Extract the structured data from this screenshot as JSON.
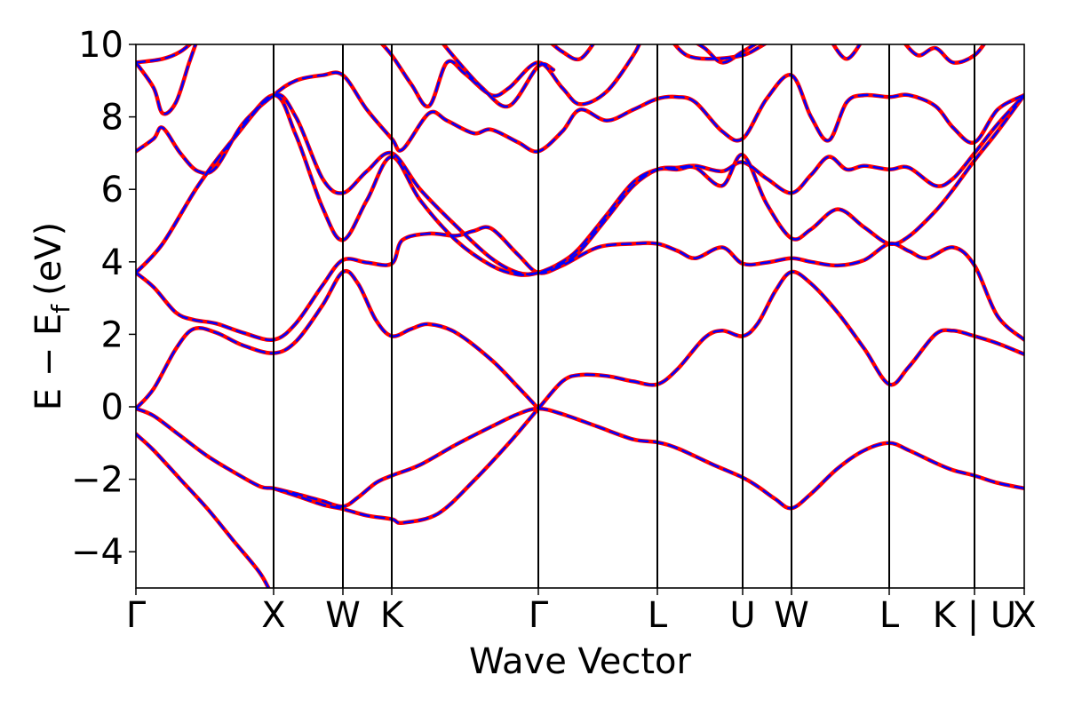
{
  "chart_data": {
    "type": "line",
    "title": "",
    "xlabel": "Wave Vector",
    "ylabel": "E − E",
    "ylabel_sub": "f",
    "ylabel_unit": "(eV)",
    "ylim": [
      -5,
      10
    ],
    "yticks": [
      -4,
      -2,
      0,
      2,
      4,
      6,
      8,
      10
    ],
    "ytick_labels": [
      "−4",
      "−2",
      "0",
      "2",
      "4",
      "6",
      "8",
      "10"
    ],
    "x_range": [
      0,
      1
    ],
    "kpath": [
      {
        "label": "Γ",
        "x": 0.0
      },
      {
        "label": "X",
        "x": 0.155
      },
      {
        "label": "W",
        "x": 0.233
      },
      {
        "label": "K",
        "x": 0.288
      },
      {
        "label": "Γ",
        "x": 0.453
      },
      {
        "label": "L",
        "x": 0.587
      },
      {
        "label": "U",
        "x": 0.683
      },
      {
        "label": "W",
        "x": 0.738
      },
      {
        "label": "L",
        "x": 0.848
      },
      {
        "label": "K | U",
        "x": 0.944
      },
      {
        "label": "X",
        "x": 1.0
      }
    ],
    "grid": false,
    "legend": "none",
    "series": [
      {
        "color": "#ff0000",
        "style": "solid",
        "width": 4.5
      },
      {
        "color": "#0000ff",
        "style": "dashed",
        "width": 2.5
      }
    ],
    "bands": [
      [
        [
          0.0,
          -0.75
        ],
        [
          0.02,
          -1.2
        ],
        [
          0.05,
          -2.0
        ],
        [
          0.08,
          -2.8
        ],
        [
          0.11,
          -3.7
        ],
        [
          0.14,
          -4.6
        ],
        [
          0.155,
          -5.3
        ]
      ],
      [
        [
          0.0,
          -0.05
        ],
        [
          0.02,
          -0.25
        ],
        [
          0.05,
          -0.8
        ],
        [
          0.08,
          -1.35
        ],
        [
          0.11,
          -1.8
        ],
        [
          0.14,
          -2.2
        ],
        [
          0.155,
          -2.25
        ],
        [
          0.18,
          -2.4
        ],
        [
          0.21,
          -2.6
        ],
        [
          0.233,
          -2.75
        ],
        [
          0.25,
          -2.5
        ],
        [
          0.27,
          -2.1
        ],
        [
          0.288,
          -1.9
        ],
        [
          0.32,
          -1.6
        ],
        [
          0.36,
          -1.05
        ],
        [
          0.4,
          -0.55
        ],
        [
          0.43,
          -0.2
        ],
        [
          0.453,
          -0.05
        ],
        [
          0.48,
          -0.2
        ],
        [
          0.52,
          -0.55
        ],
        [
          0.56,
          -0.9
        ],
        [
          0.587,
          -0.98
        ],
        [
          0.61,
          -1.15
        ],
        [
          0.65,
          -1.6
        ],
        [
          0.683,
          -1.95
        ],
        [
          0.7,
          -2.2
        ],
        [
          0.72,
          -2.55
        ],
        [
          0.738,
          -2.8
        ],
        [
          0.76,
          -2.4
        ],
        [
          0.79,
          -1.7
        ],
        [
          0.82,
          -1.2
        ],
        [
          0.848,
          -1.0
        ],
        [
          0.87,
          -1.2
        ],
        [
          0.9,
          -1.55
        ],
        [
          0.92,
          -1.75
        ],
        [
          0.944,
          -1.9
        ],
        [
          0.97,
          -2.1
        ],
        [
          1.0,
          -2.25
        ]
      ],
      [
        [
          0.155,
          -2.25
        ],
        [
          0.18,
          -2.45
        ],
        [
          0.21,
          -2.7
        ],
        [
          0.233,
          -2.82
        ],
        [
          0.26,
          -3.0
        ],
        [
          0.288,
          -3.1
        ],
        [
          0.3,
          -3.2
        ],
        [
          0.34,
          -2.95
        ],
        [
          0.38,
          -2.05
        ],
        [
          0.42,
          -1.0
        ],
        [
          0.453,
          -0.05
        ],
        [
          0.48,
          0.7
        ],
        [
          0.5,
          0.88
        ],
        [
          0.53,
          0.85
        ],
        [
          0.56,
          0.7
        ],
        [
          0.587,
          0.62
        ],
        [
          0.61,
          1.05
        ],
        [
          0.64,
          1.9
        ],
        [
          0.66,
          2.1
        ],
        [
          0.683,
          1.95
        ],
        [
          0.7,
          2.3
        ],
        [
          0.72,
          3.2
        ],
        [
          0.738,
          3.72
        ],
        [
          0.76,
          3.4
        ],
        [
          0.79,
          2.6
        ],
        [
          0.82,
          1.6
        ],
        [
          0.848,
          0.62
        ],
        [
          0.87,
          1.1
        ],
        [
          0.9,
          2.0
        ],
        [
          0.92,
          2.1
        ],
        [
          0.944,
          1.95
        ],
        [
          0.97,
          1.75
        ],
        [
          1.0,
          1.45
        ]
      ],
      [
        [
          0.0,
          -0.05
        ],
        [
          0.02,
          0.5
        ],
        [
          0.045,
          1.6
        ],
        [
          0.065,
          2.15
        ],
        [
          0.09,
          2.05
        ],
        [
          0.12,
          1.7
        ],
        [
          0.155,
          1.48
        ],
        [
          0.18,
          1.8
        ],
        [
          0.21,
          2.8
        ],
        [
          0.233,
          3.72
        ],
        [
          0.25,
          3.4
        ],
        [
          0.27,
          2.4
        ],
        [
          0.288,
          1.95
        ],
        [
          0.31,
          2.15
        ],
        [
          0.33,
          2.28
        ],
        [
          0.36,
          2.05
        ],
        [
          0.4,
          1.3
        ],
        [
          0.43,
          0.55
        ],
        [
          0.453,
          -0.05
        ]
      ],
      [
        [
          0.0,
          3.7
        ],
        [
          0.02,
          3.3
        ],
        [
          0.045,
          2.6
        ],
        [
          0.065,
          2.4
        ],
        [
          0.09,
          2.3
        ],
        [
          0.12,
          2.05
        ],
        [
          0.155,
          1.85
        ],
        [
          0.18,
          2.3
        ],
        [
          0.21,
          3.35
        ],
        [
          0.233,
          4.05
        ],
        [
          0.26,
          3.98
        ],
        [
          0.288,
          3.95
        ],
        [
          0.3,
          4.6
        ],
        [
          0.33,
          4.78
        ],
        [
          0.36,
          4.72
        ],
        [
          0.38,
          4.85
        ],
        [
          0.4,
          4.92
        ],
        [
          0.43,
          4.2
        ],
        [
          0.453,
          3.7
        ],
        [
          0.48,
          3.9
        ],
        [
          0.52,
          4.4
        ],
        [
          0.56,
          4.5
        ],
        [
          0.587,
          4.5
        ],
        [
          0.61,
          4.3
        ],
        [
          0.63,
          4.1
        ],
        [
          0.66,
          4.4
        ],
        [
          0.683,
          3.95
        ],
        [
          0.71,
          3.98
        ],
        [
          0.738,
          4.1
        ],
        [
          0.76,
          4.0
        ],
        [
          0.79,
          3.9
        ],
        [
          0.82,
          4.05
        ],
        [
          0.848,
          4.5
        ],
        [
          0.87,
          4.3
        ],
        [
          0.89,
          4.1
        ],
        [
          0.92,
          4.4
        ],
        [
          0.944,
          3.9
        ],
        [
          0.97,
          2.5
        ],
        [
          1.0,
          1.85
        ]
      ],
      [
        [
          0.0,
          3.7
        ],
        [
          0.03,
          4.5
        ],
        [
          0.07,
          6.1
        ],
        [
          0.11,
          7.4
        ],
        [
          0.155,
          8.6
        ],
        [
          0.18,
          7.5
        ],
        [
          0.21,
          5.5
        ],
        [
          0.233,
          4.6
        ],
        [
          0.26,
          5.7
        ],
        [
          0.288,
          6.9
        ],
        [
          0.32,
          5.7
        ],
        [
          0.36,
          4.6
        ],
        [
          0.4,
          3.9
        ],
        [
          0.43,
          3.65
        ],
        [
          0.453,
          3.7
        ],
        [
          0.48,
          4.0
        ],
        [
          0.5,
          4.4
        ],
        [
          0.53,
          5.3
        ],
        [
          0.56,
          6.2
        ],
        [
          0.587,
          6.55
        ],
        [
          0.61,
          6.55
        ],
        [
          0.63,
          6.6
        ],
        [
          0.66,
          6.1
        ],
        [
          0.683,
          6.95
        ],
        [
          0.71,
          5.6
        ],
        [
          0.738,
          4.65
        ],
        [
          0.76,
          4.9
        ],
        [
          0.79,
          5.45
        ],
        [
          0.82,
          4.95
        ],
        [
          0.848,
          4.5
        ],
        [
          0.87,
          4.7
        ],
        [
          0.9,
          5.4
        ],
        [
          0.92,
          6.0
        ],
        [
          0.944,
          6.8
        ],
        [
          0.97,
          7.6
        ],
        [
          1.0,
          8.6
        ]
      ],
      [
        [
          0.0,
          3.7
        ],
        [
          0.03,
          4.5
        ],
        [
          0.07,
          6.1
        ],
        [
          0.11,
          7.4
        ],
        [
          0.155,
          8.6
        ],
        [
          0.18,
          8.0
        ],
        [
          0.21,
          6.3
        ],
        [
          0.233,
          5.9
        ],
        [
          0.26,
          6.5
        ],
        [
          0.288,
          7.0
        ],
        [
          0.32,
          6.0
        ],
        [
          0.36,
          5.0
        ],
        [
          0.4,
          4.1
        ],
        [
          0.43,
          3.7
        ],
        [
          0.453,
          3.7
        ],
        [
          0.48,
          3.95
        ],
        [
          0.5,
          4.3
        ],
        [
          0.53,
          5.2
        ],
        [
          0.56,
          6.1
        ],
        [
          0.587,
          6.55
        ],
        [
          0.61,
          6.6
        ],
        [
          0.63,
          6.65
        ],
        [
          0.66,
          6.5
        ],
        [
          0.683,
          6.75
        ],
        [
          0.71,
          6.3
        ],
        [
          0.738,
          5.9
        ],
        [
          0.76,
          6.4
        ],
        [
          0.78,
          6.9
        ],
        [
          0.8,
          6.55
        ],
        [
          0.82,
          6.65
        ],
        [
          0.848,
          6.55
        ],
        [
          0.87,
          6.6
        ],
        [
          0.9,
          6.1
        ],
        [
          0.92,
          6.3
        ],
        [
          0.944,
          7.0
        ],
        [
          0.97,
          7.8
        ],
        [
          1.0,
          8.6
        ]
      ],
      [
        [
          0.0,
          7.05
        ],
        [
          0.02,
          7.4
        ],
        [
          0.03,
          7.7
        ],
        [
          0.05,
          7.0
        ],
        [
          0.07,
          6.5
        ],
        [
          0.09,
          6.6
        ],
        [
          0.12,
          7.8
        ],
        [
          0.155,
          8.6
        ],
        [
          0.18,
          9.0
        ],
        [
          0.21,
          9.15
        ],
        [
          0.233,
          9.15
        ],
        [
          0.26,
          8.2
        ],
        [
          0.288,
          7.4
        ],
        [
          0.3,
          7.1
        ],
        [
          0.33,
          8.1
        ],
        [
          0.35,
          7.9
        ],
        [
          0.38,
          7.55
        ],
        [
          0.4,
          7.65
        ],
        [
          0.43,
          7.3
        ],
        [
          0.453,
          7.05
        ],
        [
          0.48,
          7.6
        ],
        [
          0.5,
          8.2
        ],
        [
          0.53,
          7.9
        ],
        [
          0.56,
          8.2
        ],
        [
          0.587,
          8.5
        ],
        [
          0.61,
          8.55
        ],
        [
          0.63,
          8.4
        ],
        [
          0.66,
          7.6
        ],
        [
          0.683,
          7.4
        ],
        [
          0.71,
          8.5
        ],
        [
          0.738,
          9.15
        ],
        [
          0.76,
          8.0
        ],
        [
          0.78,
          7.35
        ],
        [
          0.8,
          8.4
        ],
        [
          0.82,
          8.6
        ],
        [
          0.848,
          8.55
        ],
        [
          0.87,
          8.6
        ],
        [
          0.9,
          8.3
        ],
        [
          0.92,
          7.7
        ],
        [
          0.944,
          7.3
        ],
        [
          0.97,
          8.2
        ],
        [
          1.0,
          8.6
        ]
      ],
      [
        [
          0.0,
          9.5
        ],
        [
          0.02,
          8.8
        ],
        [
          0.03,
          8.1
        ],
        [
          0.045,
          8.4
        ],
        [
          0.06,
          9.5
        ],
        [
          0.07,
          10.2
        ]
      ],
      [
        [
          0.0,
          9.5
        ],
        [
          0.03,
          9.6
        ],
        [
          0.05,
          9.8
        ],
        [
          0.07,
          10.2
        ]
      ],
      [
        [
          0.27,
          10.2
        ],
        [
          0.288,
          9.7
        ],
        [
          0.31,
          8.9
        ],
        [
          0.33,
          8.3
        ],
        [
          0.35,
          9.5
        ],
        [
          0.37,
          9.2
        ],
        [
          0.4,
          8.6
        ],
        [
          0.42,
          8.8
        ],
        [
          0.453,
          9.5
        ],
        [
          0.48,
          8.8
        ],
        [
          0.5,
          8.35
        ],
        [
          0.53,
          8.7
        ],
        [
          0.56,
          9.7
        ],
        [
          0.57,
          10.2
        ]
      ],
      [
        [
          0.34,
          10.2
        ],
        [
          0.36,
          9.6
        ],
        [
          0.39,
          8.8
        ],
        [
          0.42,
          8.3
        ],
        [
          0.453,
          9.4
        ],
        [
          0.47,
          9.3
        ]
      ],
      [
        [
          0.46,
          10.2
        ],
        [
          0.48,
          9.8
        ],
        [
          0.5,
          9.6
        ],
        [
          0.52,
          10.2
        ]
      ],
      [
        [
          0.6,
          10.2
        ],
        [
          0.62,
          9.7
        ],
        [
          0.65,
          9.6
        ],
        [
          0.683,
          9.7
        ],
        [
          0.7,
          9.9
        ],
        [
          0.72,
          10.2
        ]
      ],
      [
        [
          0.62,
          10.2
        ],
        [
          0.64,
          9.9
        ],
        [
          0.66,
          9.5
        ],
        [
          0.683,
          9.8
        ],
        [
          0.71,
          10.2
        ]
      ],
      [
        [
          0.78,
          10.2
        ],
        [
          0.8,
          9.6
        ],
        [
          0.82,
          10.2
        ]
      ],
      [
        [
          0.86,
          10.2
        ],
        [
          0.88,
          9.7
        ],
        [
          0.9,
          9.9
        ],
        [
          0.92,
          9.5
        ],
        [
          0.944,
          9.7
        ],
        [
          0.96,
          10.2
        ]
      ]
    ]
  }
}
